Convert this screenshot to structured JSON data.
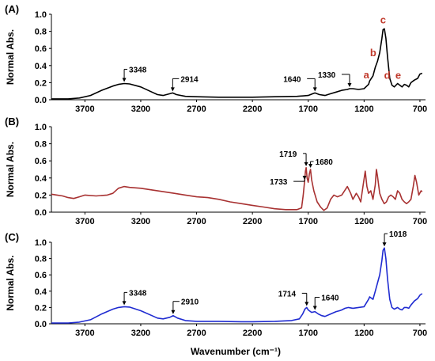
{
  "chart_data": [
    {
      "type": "line",
      "panel": "(A)",
      "ylabel": "Normal Abs.",
      "xlim": [
        4000,
        650
      ],
      "ylim": [
        0,
        1.0
      ],
      "yticks": [
        "0.0",
        "0.2",
        "0.4",
        "0.6",
        "0.8",
        "1.0"
      ],
      "xticks": [
        "3700",
        "3200",
        "2700",
        "2200",
        "1700",
        "1200",
        "700"
      ],
      "color": "#000000",
      "points": [
        [
          4000,
          0.01
        ],
        [
          3850,
          0.01
        ],
        [
          3750,
          0.02
        ],
        [
          3650,
          0.05
        ],
        [
          3550,
          0.11
        ],
        [
          3450,
          0.16
        ],
        [
          3400,
          0.18
        ],
        [
          3348,
          0.19
        ],
        [
          3300,
          0.185
        ],
        [
          3200,
          0.15
        ],
        [
          3100,
          0.09
        ],
        [
          3050,
          0.06
        ],
        [
          3000,
          0.05
        ],
        [
          2940,
          0.07
        ],
        [
          2914,
          0.08
        ],
        [
          2880,
          0.06
        ],
        [
          2800,
          0.04
        ],
        [
          2700,
          0.035
        ],
        [
          2500,
          0.03
        ],
        [
          2300,
          0.03
        ],
        [
          2200,
          0.03
        ],
        [
          2000,
          0.035
        ],
        [
          1800,
          0.04
        ],
        [
          1700,
          0.05
        ],
        [
          1660,
          0.07
        ],
        [
          1640,
          0.08
        ],
        [
          1600,
          0.06
        ],
        [
          1550,
          0.05
        ],
        [
          1500,
          0.07
        ],
        [
          1450,
          0.09
        ],
        [
          1400,
          0.11
        ],
        [
          1350,
          0.12
        ],
        [
          1330,
          0.13
        ],
        [
          1300,
          0.13
        ],
        [
          1250,
          0.12
        ],
        [
          1200,
          0.13
        ],
        [
          1160,
          0.18
        ],
        [
          1150,
          0.22
        ],
        [
          1120,
          0.28
        ],
        [
          1100,
          0.38
        ],
        [
          1080,
          0.45
        ],
        [
          1060,
          0.55
        ],
        [
          1040,
          0.72
        ],
        [
          1030,
          0.82
        ],
        [
          1018,
          0.83
        ],
        [
          1005,
          0.72
        ],
        [
          990,
          0.5
        ],
        [
          970,
          0.25
        ],
        [
          950,
          0.17
        ],
        [
          930,
          0.15
        ],
        [
          900,
          0.19
        ],
        [
          880,
          0.17
        ],
        [
          860,
          0.15
        ],
        [
          840,
          0.18
        ],
        [
          820,
          0.17
        ],
        [
          800,
          0.15
        ],
        [
          780,
          0.2
        ],
        [
          750,
          0.23
        ],
        [
          720,
          0.25
        ],
        [
          700,
          0.3
        ],
        [
          680,
          0.31
        ]
      ],
      "annotations": [
        {
          "text": "3348",
          "x": 3348
        },
        {
          "text": "2914",
          "x": 2914
        },
        {
          "text": "1640",
          "x": 1640
        },
        {
          "text": "1330",
          "x": 1330
        }
      ],
      "letters": [
        {
          "text": "a",
          "x": 1165
        },
        {
          "text": "b",
          "x": 1090
        },
        {
          "text": "c",
          "x": 1030
        },
        {
          "text": "d",
          "x": 950
        },
        {
          "text": "e",
          "x": 880
        }
      ]
    },
    {
      "type": "line",
      "panel": "(B)",
      "ylabel": "Normal Abs.",
      "xlim": [
        4000,
        650
      ],
      "ylim": [
        0,
        1.0
      ],
      "yticks": [
        "0.0",
        "0.2",
        "0.4",
        "0.6",
        "0.8",
        "1.0"
      ],
      "xticks": [
        "3700",
        "3200",
        "2700",
        "2200",
        "1700",
        "1200",
        "700"
      ],
      "color": "#a83232",
      "points": [
        [
          4000,
          0.21
        ],
        [
          3950,
          0.2
        ],
        [
          3900,
          0.19
        ],
        [
          3850,
          0.17
        ],
        [
          3800,
          0.16
        ],
        [
          3750,
          0.18
        ],
        [
          3700,
          0.2
        ],
        [
          3600,
          0.19
        ],
        [
          3500,
          0.2
        ],
        [
          3450,
          0.22
        ],
        [
          3400,
          0.28
        ],
        [
          3350,
          0.3
        ],
        [
          3300,
          0.29
        ],
        [
          3200,
          0.28
        ],
        [
          3100,
          0.26
        ],
        [
          3000,
          0.24
        ],
        [
          2900,
          0.22
        ],
        [
          2800,
          0.2
        ],
        [
          2700,
          0.18
        ],
        [
          2600,
          0.17
        ],
        [
          2500,
          0.15
        ],
        [
          2400,
          0.12
        ],
        [
          2300,
          0.1
        ],
        [
          2200,
          0.08
        ],
        [
          2100,
          0.06
        ],
        [
          2000,
          0.04
        ],
        [
          1900,
          0.03
        ],
        [
          1800,
          0.03
        ],
        [
          1760,
          0.05
        ],
        [
          1745,
          0.2
        ],
        [
          1733,
          0.36
        ],
        [
          1725,
          0.48
        ],
        [
          1719,
          0.52
        ],
        [
          1710,
          0.4
        ],
        [
          1700,
          0.35
        ],
        [
          1690,
          0.45
        ],
        [
          1680,
          0.5
        ],
        [
          1670,
          0.38
        ],
        [
          1650,
          0.25
        ],
        [
          1620,
          0.12
        ],
        [
          1590,
          0.06
        ],
        [
          1560,
          0.02
        ],
        [
          1530,
          0.05
        ],
        [
          1500,
          0.15
        ],
        [
          1470,
          0.2
        ],
        [
          1440,
          0.18
        ],
        [
          1400,
          0.2
        ],
        [
          1350,
          0.3
        ],
        [
          1320,
          0.22
        ],
        [
          1300,
          0.15
        ],
        [
          1270,
          0.22
        ],
        [
          1250,
          0.18
        ],
        [
          1230,
          0.12
        ],
        [
          1210,
          0.3
        ],
        [
          1190,
          0.48
        ],
        [
          1175,
          0.3
        ],
        [
          1160,
          0.22
        ],
        [
          1140,
          0.25
        ],
        [
          1120,
          0.15
        ],
        [
          1100,
          0.32
        ],
        [
          1090,
          0.5
        ],
        [
          1080,
          0.42
        ],
        [
          1060,
          0.22
        ],
        [
          1040,
          0.15
        ],
        [
          1020,
          0.1
        ],
        [
          1000,
          0.12
        ],
        [
          980,
          0.18
        ],
        [
          960,
          0.2
        ],
        [
          940,
          0.18
        ],
        [
          920,
          0.15
        ],
        [
          900,
          0.25
        ],
        [
          880,
          0.22
        ],
        [
          860,
          0.15
        ],
        [
          840,
          0.12
        ],
        [
          820,
          0.1
        ],
        [
          800,
          0.12
        ],
        [
          780,
          0.15
        ],
        [
          760,
          0.3
        ],
        [
          745,
          0.43
        ],
        [
          730,
          0.35
        ],
        [
          710,
          0.2
        ],
        [
          690,
          0.25
        ],
        [
          680,
          0.24
        ]
      ],
      "annotations": [
        {
          "text": "1719",
          "x": 1719
        },
        {
          "text": "1680",
          "x": 1680
        },
        {
          "text": "1733",
          "x": 1733
        }
      ]
    },
    {
      "type": "line",
      "panel": "(C)",
      "ylabel": "Normal Abs.",
      "xlabel": "Wavenumber (cm⁻¹)",
      "xlim": [
        4000,
        650
      ],
      "ylim": [
        0,
        1.0
      ],
      "yticks": [
        "0.0",
        "0.2",
        "0.4",
        "0.6",
        "0.8",
        "1.0"
      ],
      "xticks": [
        "3700",
        "3200",
        "2700",
        "2200",
        "1700",
        "1200",
        "700"
      ],
      "color": "#1f2bd1",
      "points": [
        [
          4000,
          0.01
        ],
        [
          3850,
          0.01
        ],
        [
          3750,
          0.02
        ],
        [
          3650,
          0.05
        ],
        [
          3550,
          0.12
        ],
        [
          3450,
          0.18
        ],
        [
          3400,
          0.2
        ],
        [
          3348,
          0.21
        ],
        [
          3300,
          0.205
        ],
        [
          3200,
          0.16
        ],
        [
          3100,
          0.1
        ],
        [
          3050,
          0.07
        ],
        [
          3000,
          0.06
        ],
        [
          2940,
          0.08
        ],
        [
          2910,
          0.1
        ],
        [
          2870,
          0.07
        ],
        [
          2800,
          0.04
        ],
        [
          2700,
          0.03
        ],
        [
          2500,
          0.03
        ],
        [
          2300,
          0.025
        ],
        [
          2200,
          0.025
        ],
        [
          2000,
          0.03
        ],
        [
          1850,
          0.04
        ],
        [
          1780,
          0.06
        ],
        [
          1750,
          0.12
        ],
        [
          1730,
          0.18
        ],
        [
          1714,
          0.2
        ],
        [
          1700,
          0.17
        ],
        [
          1670,
          0.14
        ],
        [
          1640,
          0.15
        ],
        [
          1610,
          0.12
        ],
        [
          1580,
          0.1
        ],
        [
          1550,
          0.09
        ],
        [
          1500,
          0.12
        ],
        [
          1450,
          0.15
        ],
        [
          1420,
          0.16
        ],
        [
          1400,
          0.17
        ],
        [
          1370,
          0.19
        ],
        [
          1340,
          0.2
        ],
        [
          1300,
          0.19
        ],
        [
          1250,
          0.2
        ],
        [
          1200,
          0.21
        ],
        [
          1160,
          0.3
        ],
        [
          1150,
          0.33
        ],
        [
          1120,
          0.3
        ],
        [
          1100,
          0.4
        ],
        [
          1080,
          0.5
        ],
        [
          1060,
          0.6
        ],
        [
          1040,
          0.78
        ],
        [
          1030,
          0.9
        ],
        [
          1018,
          0.93
        ],
        [
          1005,
          0.8
        ],
        [
          990,
          0.55
        ],
        [
          970,
          0.3
        ],
        [
          950,
          0.2
        ],
        [
          930,
          0.18
        ],
        [
          900,
          0.2
        ],
        [
          880,
          0.18
        ],
        [
          860,
          0.17
        ],
        [
          840,
          0.2
        ],
        [
          820,
          0.2
        ],
        [
          800,
          0.19
        ],
        [
          780,
          0.23
        ],
        [
          750,
          0.28
        ],
        [
          720,
          0.31
        ],
        [
          700,
          0.35
        ],
        [
          680,
          0.37
        ]
      ],
      "annotations": [
        {
          "text": "3348",
          "x": 3348
        },
        {
          "text": "2910",
          "x": 2910
        },
        {
          "text": "1714",
          "x": 1714
        },
        {
          "text": "1640",
          "x": 1640
        },
        {
          "text": "1018",
          "x": 1018
        }
      ]
    }
  ]
}
